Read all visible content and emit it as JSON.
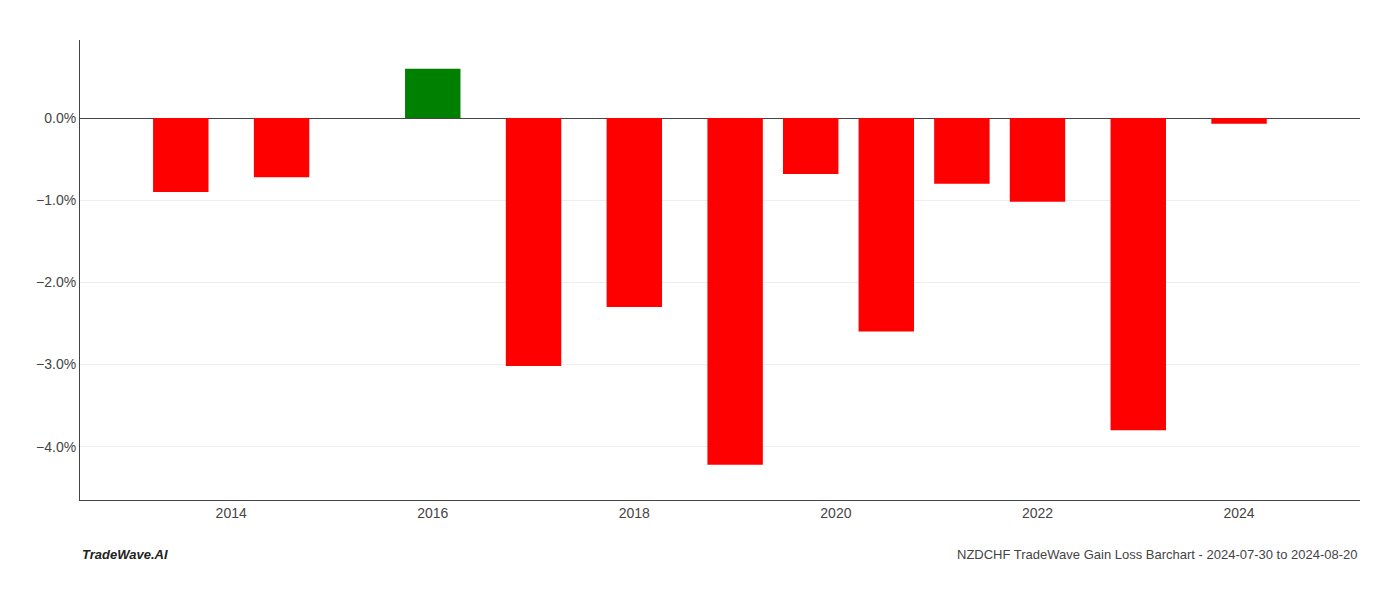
{
  "chart_data": {
    "type": "bar",
    "x": [
      2013.5,
      2014.5,
      2016.0,
      2017.0,
      2018.0,
      2019.0,
      2019.75,
      2020.5,
      2021.25,
      2022.0,
      2023.0,
      2024.0
    ],
    "values": [
      -0.9,
      -0.72,
      0.6,
      -3.02,
      -2.3,
      -4.22,
      -0.68,
      -2.6,
      -0.8,
      -1.02,
      -3.8,
      -0.07
    ],
    "colors": [
      "#ff0000",
      "#ff0000",
      "#008000",
      "#ff0000",
      "#ff0000",
      "#ff0000",
      "#ff0000",
      "#ff0000",
      "#ff0000",
      "#ff0000",
      "#ff0000",
      "#ff0000"
    ],
    "xlim": [
      2012.5,
      2025.2
    ],
    "xticks": [
      2014,
      2016,
      2018,
      2020,
      2022,
      2024
    ],
    "ylim": [
      -4.65,
      0.95
    ],
    "yticks": [
      {
        "value": 0.0,
        "label": "0.0%"
      },
      {
        "value": -1.0,
        "label": "−1.0%"
      },
      {
        "value": -2.0,
        "label": "−2.0%"
      },
      {
        "value": -3.0,
        "label": "−3.0%"
      },
      {
        "value": -4.0,
        "label": "−4.0%"
      }
    ],
    "grid": true,
    "annotations": [
      "TradeWave.AI",
      "NZDCHF TradeWave Gain Loss Barchart - 2024-07-30 to 2024-08-20"
    ]
  }
}
